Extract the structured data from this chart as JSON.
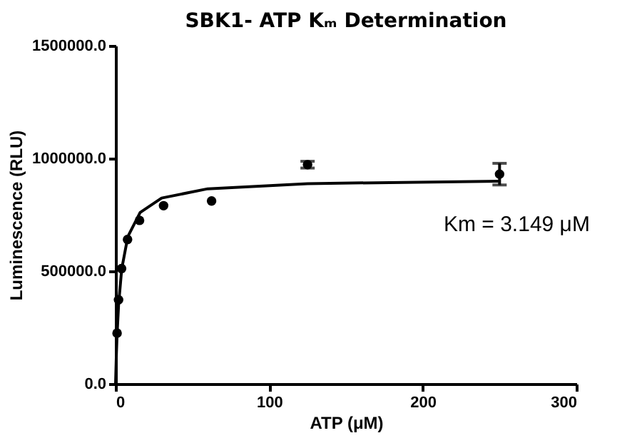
{
  "chart_data": {
    "type": "scatter",
    "title": "SBK1- ATP Kₘ Determination",
    "xlabel": "ATP (μM)",
    "ylabel": "Luminescence (RLU)",
    "annotations": [
      "Km = 3.149 μM"
    ],
    "xlim": [
      0,
      300
    ],
    "xticks": [
      0,
      100,
      200,
      300
    ],
    "ylim": [
      0,
      1500000
    ],
    "yticks": [
      {
        "value": 0,
        "label": "0.0"
      },
      {
        "value": 500000,
        "label": "500000.0"
      },
      {
        "value": 1000000,
        "label": "1000000.0"
      },
      {
        "value": 1500000,
        "label": "1500000.0"
      }
    ],
    "grid": false,
    "series": [
      {
        "marker": "circle",
        "color": "#000000",
        "x": [
          0.98,
          1.95,
          3.9,
          7.8,
          15.6,
          31.25,
          62.5,
          125,
          250
        ],
        "values": [
          225000,
          373000,
          511000,
          640000,
          725000,
          790000,
          811000,
          972000,
          930000
        ],
        "errors": [
          null,
          null,
          null,
          null,
          null,
          null,
          null,
          15000,
          48000
        ]
      },
      {
        "type": "line",
        "color": "#000000",
        "line_style": "solid",
        "x": [
          0,
          0.5,
          1,
          2,
          4,
          8,
          16,
          30,
          60,
          125,
          250
        ],
        "values": [
          0,
          125000,
          219000,
          353000,
          509000,
          653000,
          760000,
          824000,
          865000,
          888000,
          899000
        ]
      }
    ]
  }
}
